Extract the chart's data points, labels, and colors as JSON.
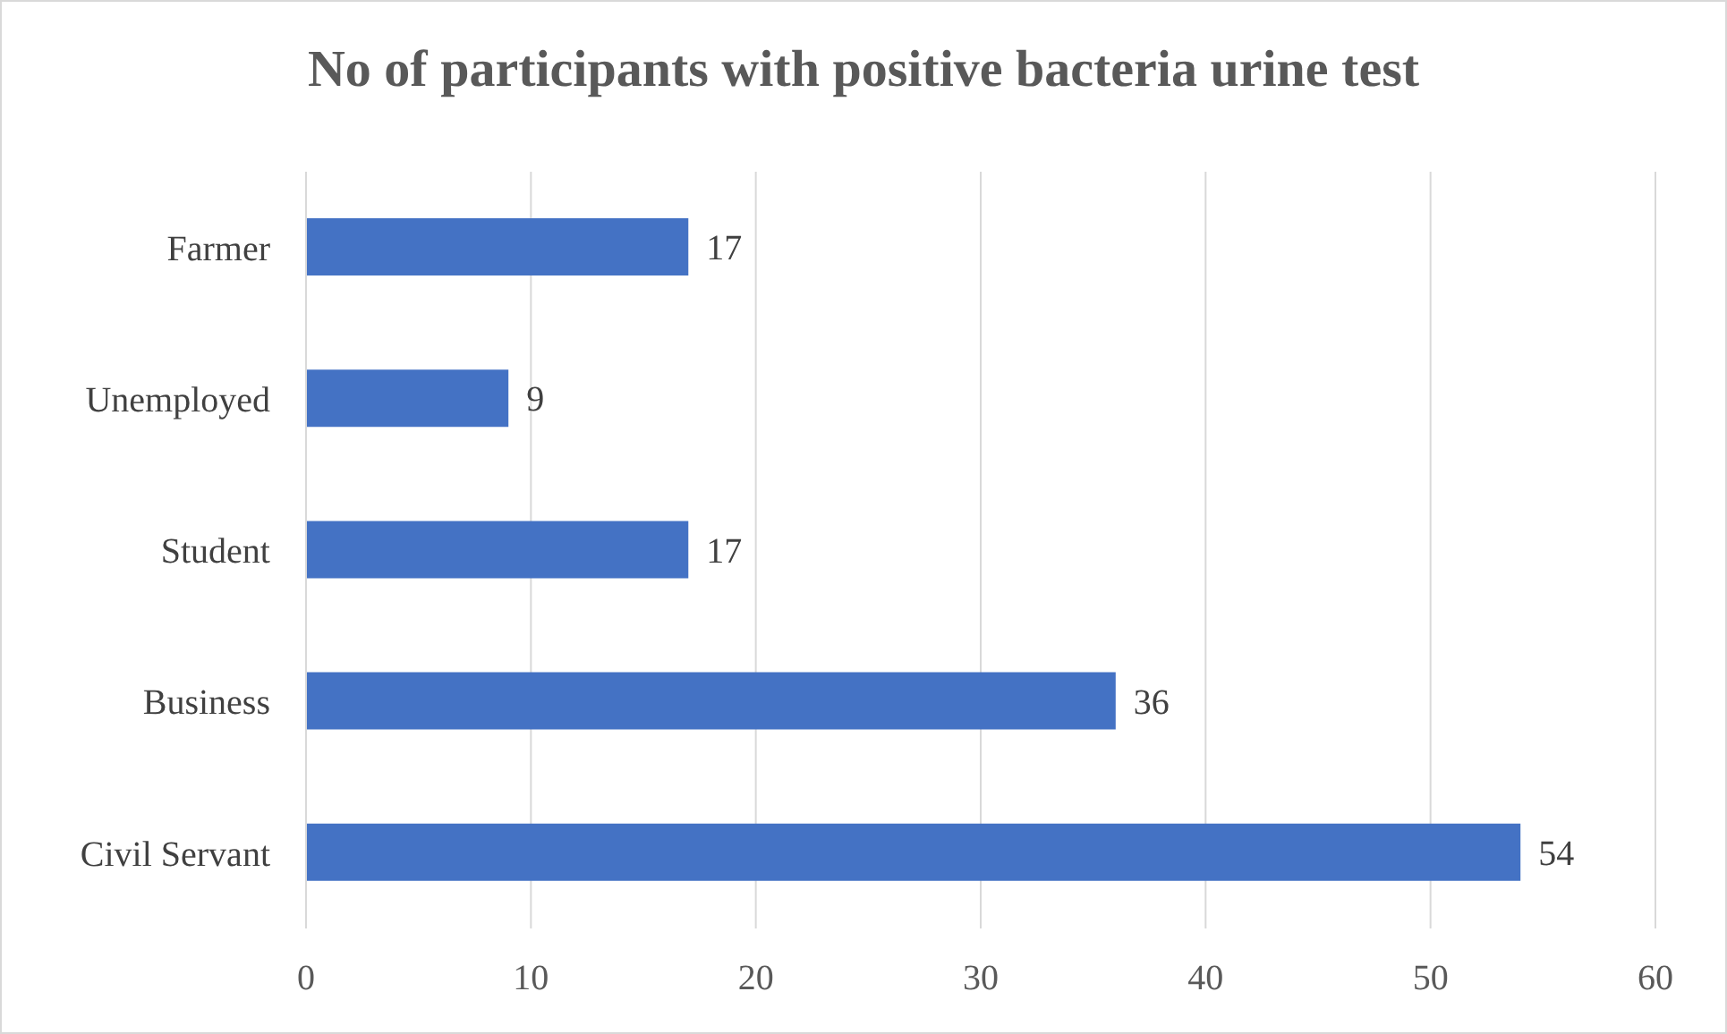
{
  "chart_data": {
    "type": "bar",
    "orientation": "horizontal",
    "title": "No of participants with positive bacteria urine test",
    "categories": [
      "Farmer",
      "Unemployed",
      "Student",
      "Business",
      "Civil Servant"
    ],
    "values": [
      17,
      9,
      17,
      36,
      54
    ],
    "color": "#4472c4",
    "xlim": [
      0,
      60
    ],
    "xticks": [
      0,
      10,
      20,
      30,
      40,
      50,
      60
    ],
    "grid": "x",
    "data_labels": true
  }
}
